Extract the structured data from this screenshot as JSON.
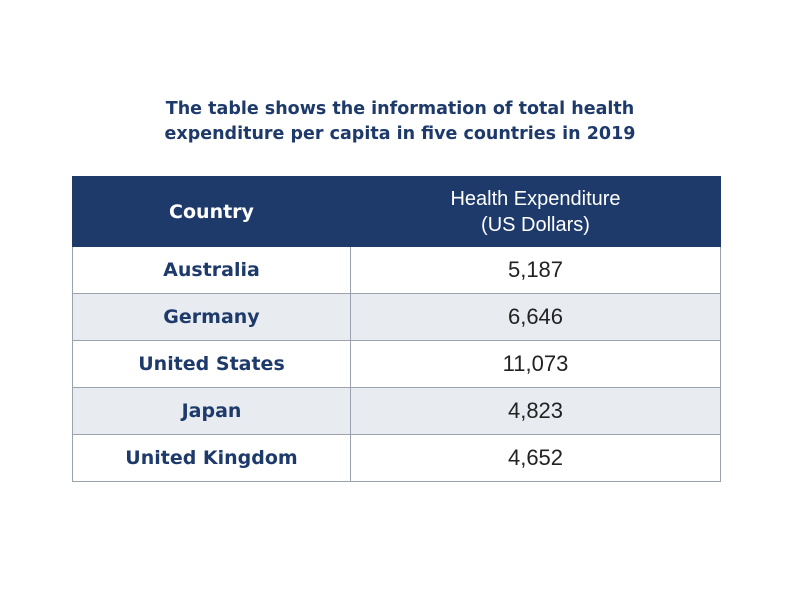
{
  "title_lines": [
    "The table shows the information of total health",
    "expenditure per capita in five countries in 2019"
  ],
  "chart_data": {
    "type": "table",
    "columns": [
      "Country",
      "Health Expenditure (US Dollars)"
    ],
    "header": {
      "country": "Country",
      "value_line1": "Health Expenditure",
      "value_line2": "(US Dollars)"
    },
    "rows": [
      {
        "country": "Australia",
        "value": "5,187"
      },
      {
        "country": "Germany",
        "value": "6,646"
      },
      {
        "country": "United States",
        "value": "11,073"
      },
      {
        "country": "Japan",
        "value": "4,823"
      },
      {
        "country": "United Kingdom",
        "value": "4,652"
      }
    ]
  },
  "colors": {
    "header_bg": "#1e3a6b",
    "title_text": "#1e3a6b",
    "alt_row_bg": "#e8ecf1"
  }
}
